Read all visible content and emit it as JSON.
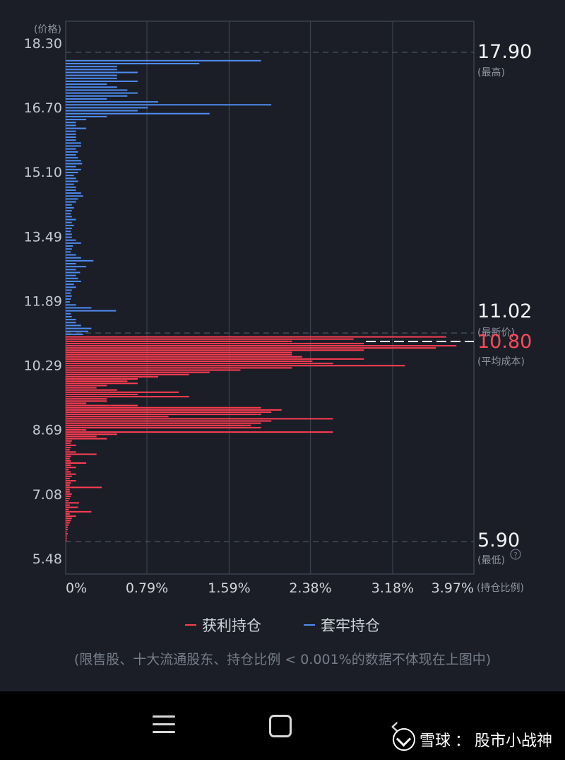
{
  "chart_data": {
    "type": "bar",
    "orientation": "horizontal",
    "title": "",
    "ylabel": "价格",
    "xlabel": "持仓比例",
    "y_ticks": [
      "18.30",
      "16.70",
      "15.10",
      "13.49",
      "11.89",
      "10.29",
      "8.69",
      "7.08",
      "5.48"
    ],
    "x_ticks": [
      "0%",
      "0.79%",
      "1.59%",
      "2.38%",
      "3.18%",
      "3.97%"
    ],
    "ylim": [
      5.48,
      18.3
    ],
    "xlim": [
      0,
      3.97
    ],
    "grid": true,
    "legend_position": "bottom",
    "series": [
      {
        "name": "获利持仓",
        "color": "#ff3d52",
        "price_min": 5.9,
        "price_max": 11.02,
        "values": [
          3.7,
          2.8,
          2.2,
          2.9,
          3.8,
          3.6,
          2.9,
          2.2,
          2.2,
          2.3,
          2.9,
          2.4,
          2.6,
          3.3,
          2.2,
          1.7,
          1.4,
          1.2,
          0.9,
          0.7,
          0.6,
          0.7,
          0.4,
          0.3,
          0.5,
          1.1,
          0.7,
          1.2,
          0.4,
          0.4,
          0.2,
          0.7,
          1.9,
          2.1,
          2.0,
          1.9,
          1.0,
          2.6,
          2.0,
          1.9,
          1.8,
          1.9,
          0.2,
          2.6,
          0.5,
          0.3,
          0.4,
          0.06,
          0.05,
          0.1,
          0.05,
          0.04,
          0.1,
          0.3,
          0.05,
          0.04,
          0.05,
          0.2,
          0.05,
          0.1,
          0.03,
          0.05,
          0.1,
          0.06,
          0.04,
          0.1,
          0.05,
          0.04,
          0.35,
          0.04,
          0.04,
          0.06,
          0.05,
          0.04,
          0.03,
          0.13,
          0.04,
          0.12,
          0.03,
          0.25,
          0.04,
          0.1,
          0.06,
          0.05,
          0.04,
          0.03,
          0.02,
          0.02,
          0.01,
          0.02,
          0.01,
          0.01,
          0.01
        ],
        "label": "获利持仓"
      },
      {
        "name": "套牢持仓",
        "color": "#4f8cf0",
        "price_min": 11.02,
        "price_max": 17.9,
        "values": [
          1.9,
          1.3,
          0.5,
          0.5,
          0.7,
          0.5,
          0.5,
          0.7,
          0.4,
          0.5,
          0.6,
          0.7,
          0.6,
          0.4,
          0.9,
          2.0,
          0.8,
          0.7,
          1.4,
          0.4,
          0.2,
          0.1,
          0.1,
          0.2,
          0.1,
          0.1,
          0.1,
          0.1,
          0.15,
          0.15,
          0.1,
          0.12,
          0.1,
          0.12,
          0.15,
          0.16,
          0.1,
          0.15,
          0.12,
          0.08,
          0.1,
          0.12,
          0.08,
          0.1,
          0.1,
          0.15,
          0.17,
          0.12,
          0.1,
          0.06,
          0.08,
          0.06,
          0.05,
          0.06,
          0.1,
          0.06,
          0.08,
          0.06,
          0.05,
          0.06,
          0.06,
          0.1,
          0.15,
          0.07,
          0.06,
          0.05,
          0.1,
          0.15,
          0.27,
          0.1,
          0.2,
          0.1,
          0.14,
          0.1,
          0.12,
          0.15,
          0.08,
          0.1,
          0.06,
          0.05,
          0.06,
          0.05,
          0.04,
          0.1,
          0.25,
          0.49,
          0.05,
          0.06,
          0.1,
          0.1,
          0.15,
          0.25,
          0.22,
          0.17
        ],
        "label": "套牢持仓"
      }
    ],
    "annotations": [
      {
        "value": "17.90",
        "label": "最高",
        "price": 17.9
      },
      {
        "value": "11.02",
        "label": "最新价",
        "price": 11.02
      },
      {
        "value": "10.80",
        "label": "平均成本",
        "price": 10.8
      },
      {
        "value": "5.90",
        "label": "最低",
        "price": 5.9
      }
    ]
  },
  "note": "(限售股、十大流通股东、持仓比例 < 0.001%的数据不体现在上图中)",
  "help_icon": "question-circle-icon",
  "navbar": {
    "menu_icon": "menu-icon",
    "home_icon": "home-square-icon",
    "back_icon": "back-chevron-icon"
  },
  "watermark": {
    "brand": "雪球",
    "separator": "：",
    "author": "股市小战神"
  }
}
